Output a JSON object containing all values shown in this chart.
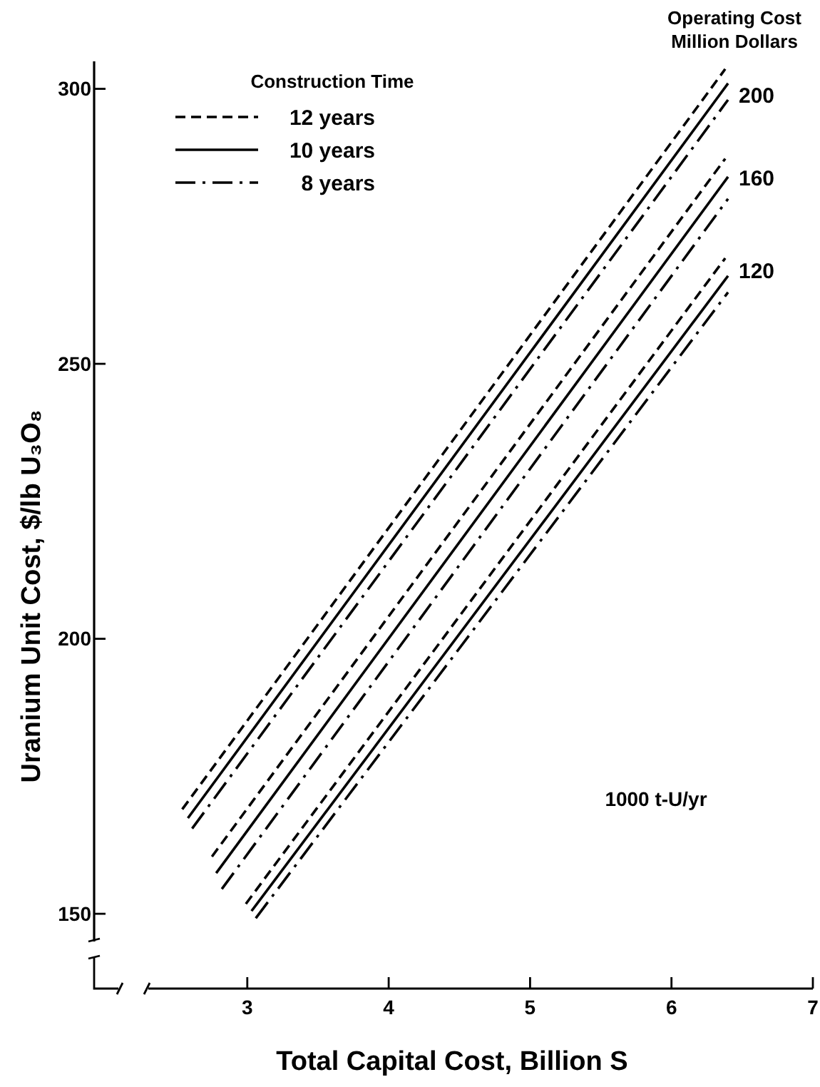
{
  "chart_data": {
    "type": "line",
    "xlabel": "Total Capital Cost, Billion S",
    "ylabel": "Uranium Unit Cost, $/lb U₃O₈",
    "legend_title": "Construction Time",
    "legend": "top left",
    "xlim": [
      2.3,
      7
    ],
    "ylim": [
      136.4,
      305
    ],
    "xticks": [
      3,
      4,
      5,
      6,
      7
    ],
    "yticks": [
      150,
      200,
      250,
      300
    ],
    "marker": "none",
    "series": [
      {
        "name": "12 years",
        "color": "#000000",
        "line_style": "dashed",
        "x": [
          2.54,
          6.38
        ],
        "values": [
          169,
          303.6
        ]
      },
      {
        "name": "10 years",
        "color": "#000000",
        "line_style": "solid",
        "x": [
          2.58,
          6.4
        ],
        "values": [
          167.4,
          301
        ]
      },
      {
        "name": "8 years",
        "color": "#000000",
        "line_style": "dashdot",
        "x": [
          2.61,
          6.4
        ],
        "values": [
          165.5,
          298
        ]
      },
      {
        "color": "#000000",
        "line_style": "dashed",
        "x": [
          2.75,
          6.38
        ],
        "values": [
          160.4,
          287.3
        ]
      },
      {
        "color": "#000000",
        "line_style": "solid",
        "x": [
          2.78,
          6.4
        ],
        "values": [
          157.4,
          284
        ]
      },
      {
        "color": "#000000",
        "line_style": "dashdot",
        "x": [
          2.82,
          6.4
        ],
        "values": [
          154.5,
          280
        ]
      },
      {
        "color": "#000000",
        "line_style": "dashed",
        "x": [
          2.99,
          6.38
        ],
        "values": [
          151.8,
          269.2
        ]
      },
      {
        "color": "#000000",
        "line_style": "solid",
        "x": [
          3.03,
          6.4
        ],
        "values": [
          150.5,
          266
        ]
      },
      {
        "color": "#000000",
        "line_style": "dashdot",
        "x": [
          3.06,
          6.4
        ],
        "values": [
          149.2,
          263
        ]
      }
    ],
    "annotations": [
      "Operating Cost Million Dollars",
      "200",
      "160",
      "120",
      "1000 t-U/yr"
    ]
  }
}
